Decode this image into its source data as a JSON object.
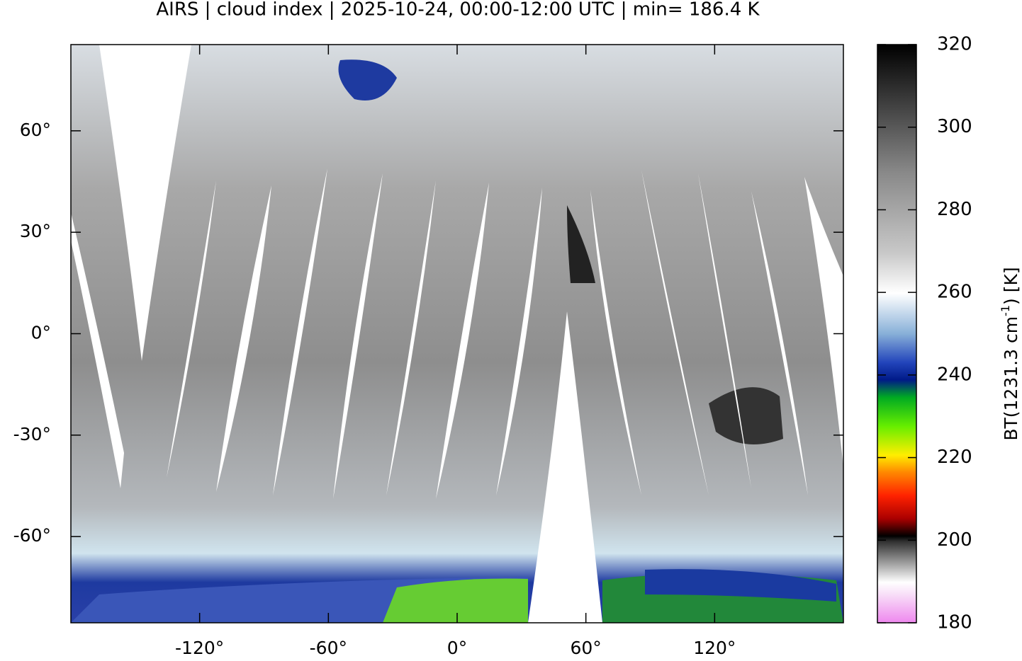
{
  "chart_data": {
    "type": "map",
    "title": "AIRS | cloud index | 2025-10-24, 00:00-12:00 UTC | min= 186.4 K",
    "xlim": [
      -180,
      180
    ],
    "ylim": [
      -85.5,
      85.5
    ],
    "xticks": [
      {
        "value": -120,
        "label": "-120°"
      },
      {
        "value": -60,
        "label": "-60°"
      },
      {
        "value": 0,
        "label": "0°"
      },
      {
        "value": 60,
        "label": "60°"
      },
      {
        "value": 120,
        "label": "120°"
      }
    ],
    "yticks": [
      {
        "value": -60,
        "label": "-60°"
      },
      {
        "value": -30,
        "label": "-30°"
      },
      {
        "value": 0,
        "label": "0°"
      },
      {
        "value": 30,
        "label": "30°"
      },
      {
        "value": 60,
        "label": "60°"
      }
    ],
    "colorbar": {
      "label": "BT(1231.3 cm",
      "label_sup": "-1",
      "label_end": ") [K]",
      "lim": [
        180,
        320
      ],
      "ticks": [
        180,
        200,
        220,
        240,
        260,
        280,
        300,
        320
      ]
    }
  }
}
